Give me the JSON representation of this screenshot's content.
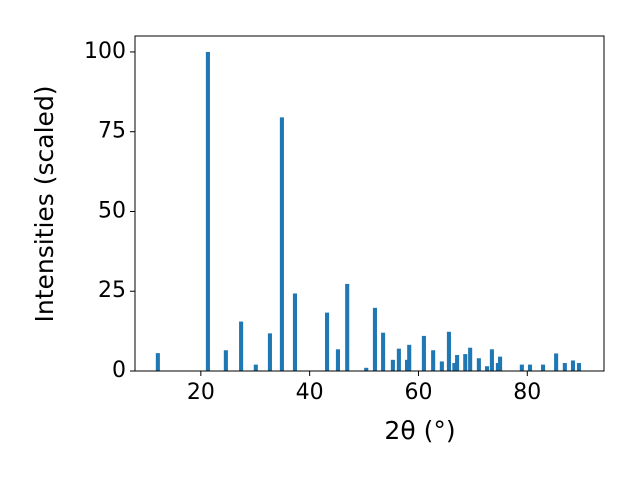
{
  "chart_data": {
    "type": "bar",
    "xlabel": "2θ (°)",
    "ylabel": "Intensities (scaled)",
    "x": [
      12.1,
      21.3,
      24.6,
      27.4,
      30.1,
      32.7,
      34.9,
      37.3,
      43.2,
      45.2,
      46.9,
      50.4,
      52.0,
      53.5,
      55.3,
      56.4,
      57.9,
      58.3,
      61.0,
      62.7,
      64.3,
      65.6,
      66.6,
      67.1,
      68.6,
      69.5,
      71.1,
      72.6,
      73.5,
      74.6,
      75.0,
      79.0,
      80.5,
      82.9,
      85.3,
      86.9,
      88.4,
      89.5
    ],
    "values": [
      5.6,
      100,
      6.5,
      15.5,
      2,
      11.8,
      79.5,
      24.3,
      18.3,
      6.8,
      27.3,
      1,
      19.8,
      12,
      3.5,
      7,
      3.5,
      8.2,
      11,
      6.5,
      3,
      12.3,
      2.5,
      5,
      5.3,
      7.3,
      4,
      1.5,
      6.8,
      2.5,
      4.5,
      2,
      2,
      2,
      5.5,
      2.5,
      3.3,
      2.5
    ],
    "color": "#1f77b4",
    "xlim": [
      7.9,
      94.1
    ],
    "ylim": [
      0,
      105
    ],
    "xticks": [
      20,
      40,
      60,
      80
    ],
    "yticks": [
      0,
      25,
      50,
      75,
      100
    ]
  }
}
